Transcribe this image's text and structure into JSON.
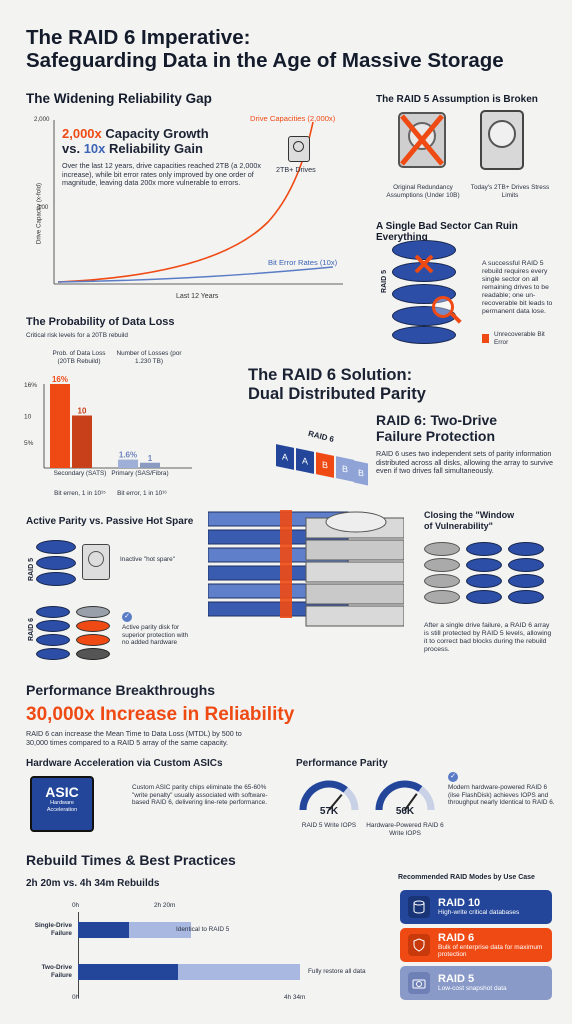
{
  "title": {
    "line1": "The RAID 6 Imperative:",
    "line2": "Safeguarding Data in the Age of Massive Storage"
  },
  "gap": {
    "heading": "The Widening Reliability Gap",
    "y_top": "2,000",
    "y_mid": "100",
    "y_axis": "Drive Capacity (x-fold)",
    "x_axis": "Last 12 Years",
    "curve_label": "Drive Capacities (2,000x)",
    "flat_label": "Bit Error Rates (10x)",
    "headline_a": "2,000x",
    "headline_b": " Capacity Growth",
    "headline_c": "vs. ",
    "headline_d": "10x",
    "headline_e": " Reliability Gain",
    "body": "Over the last 12 years, drive capacities reached 2TB (a 2,000x increase), while bit error rates only improved by one order of magnitude, leaving data 200x more vulnerable to errors.",
    "drive_label": "2TB+ Drives"
  },
  "raid5_broken": {
    "heading": "The RAID 5 Assumption is Broken",
    "left_label": "Original Redundancy Assumptions (Under 10B)",
    "right_label": "Today's 2TB+ Drives Stress Limits"
  },
  "bad_sector": {
    "heading": "A Single Bad Sector Can Ruin Everything",
    "side_label": "RAID 5",
    "body": "A successful RAID 5 rebuild requires every single sector on all remaining drives to be readable; one un-recoverable bit leads to permanent data lose.",
    "legend": "Unrecoverable Bit Error"
  },
  "prob": {
    "heading": "The Probability of Data Loss",
    "sub": "Critical risk levels for a 20TB rebuild",
    "col1": "Prob. of Data Loss (20TB Rebuild)",
    "col2": "Number of Losses (por 1.230 TB)",
    "y16": "16%",
    "y10": "10",
    "y5": "5%",
    "g1_name": "Secondary (SATS)",
    "g1_err": "Bit erren, 1 in 10¹⁵",
    "g2_name": "Primary (SAS/Fibra)",
    "g2_err": "Bit error, 1 in 10¹⁶"
  },
  "chart_data": {
    "type": "bar",
    "categories": [
      "Secondary (SATS)",
      "Primary (SAS/Fibra)"
    ],
    "series": [
      {
        "name": "Prob. of Data Loss (20TB Rebuild)",
        "values": [
          16,
          1.6
        ],
        "labels": [
          "16%",
          "1.6%"
        ]
      },
      {
        "name": "Number of Losses (por 1.230 TB)",
        "values": [
          10,
          1
        ],
        "labels": [
          "10",
          "1"
        ]
      }
    ],
    "ylim": [
      0,
      16
    ]
  },
  "solution": {
    "heading1": "The RAID 6 Solution:",
    "heading2": "Dual Distributed Parity",
    "sub1": "RAID 6: Two-Drive",
    "sub2": "Failure Protection",
    "body": "RAID 6 uses two independent sets of parity information distributed across all disks, allowing the array to survive even if two drives fall simultaneously.",
    "blocks_label": "RAID 6",
    "blocks": [
      "A",
      "A",
      "B",
      "B",
      "B"
    ]
  },
  "active": {
    "heading": "Active Parity vs. Passive Hot Spare",
    "raid5": "RAID 5",
    "raid6": "RAID 6",
    "inactive": "Inactive \"hot spare\"",
    "active_text": "Active parity disk for superior protection with no added hardware"
  },
  "window": {
    "heading1": "Closing the \"Window",
    "heading2": "of Vulnerability\"",
    "body": "After a single drive failure, a RAID 6 array is still protected by RAID 5 levels, allowing it to correct bad blocks during the rebuild process."
  },
  "perf": {
    "heading": "Performance Breakthroughs",
    "big": "30,000x Increase in Reliability",
    "body": "RAID 6 can increase the Mean Time to Data Loss (MTDL) by 500 to 30,000 times compared to a RAID 5 array of the same capacity.",
    "hw_heading": "Hardware Acceleration via Custom ASICs",
    "asic_t1": "ASIC",
    "asic_t2": "Hardware Acceleration",
    "hw_body": "Custom ASIC parity chips eliminate the 65-60% \"write penalty\" usually associated with software-based RAID 6, delivering line-rete performance.",
    "parity_heading": "Performance Parity",
    "g1_val": "57K",
    "g1_lbl": "RAID 5 Write IOPS",
    "g1_level": 0.72,
    "g2_val": "56K",
    "g2_lbl": "Hardware-Powered RAID 6 Write IOPS",
    "g2_level": 0.7,
    "parity_body": "Modern hardware-powered RAID 6 (ilse FlashDisk) achieves IOPS and throughput nearly Identical to RAID 6."
  },
  "rebuild": {
    "heading": "Rebuild Times & Best Practices",
    "sub": "2h 20m vs. 4h 34m Rebuilds",
    "t0": "0h",
    "t1": "2h 20m",
    "t0b": "0h",
    "t2": "4h 34m",
    "row1": "Single-Drive Failure",
    "row1_note": "Identical to RAID 5",
    "row2": "Two-Drive Failure",
    "row2_note": "Fully restore all data",
    "row1_minutes": 140,
    "row2_minutes": 274
  },
  "modes": {
    "heading": "Recommended RAID Modes by Use Case",
    "items": [
      {
        "title": "RAID 10",
        "desc": "High-write critical databases",
        "color": "#23469a"
      },
      {
        "title": "RAID 6",
        "desc": "Bulk of enterprise data for maximum protection",
        "color": "#f04a14"
      },
      {
        "title": "RAID 5",
        "desc": "Low-cost snapshot data",
        "color": "#8a9ac8"
      }
    ]
  }
}
